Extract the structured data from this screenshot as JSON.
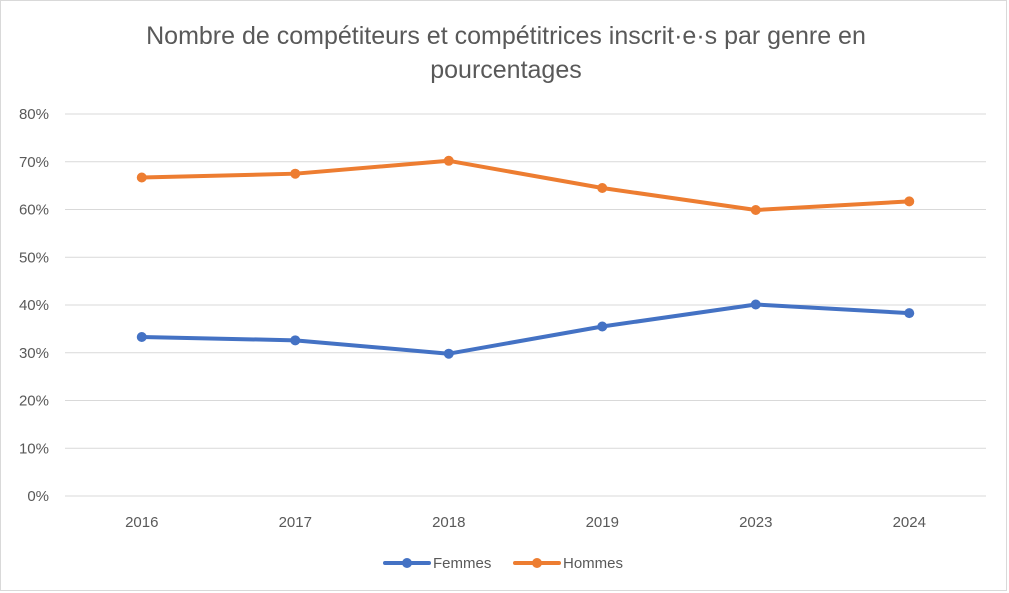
{
  "chart_data": {
    "type": "line",
    "title": "Nombre de compétiteurs et compétitrices inscrit·e·s par genre en pourcentages",
    "categories": [
      "2016",
      "2017",
      "2018",
      "2019",
      "2023",
      "2024"
    ],
    "y_ticks": [
      "0%",
      "10%",
      "20%",
      "30%",
      "40%",
      "50%",
      "60%",
      "70%",
      "80%"
    ],
    "ylim": [
      0,
      80
    ],
    "y_unit": "%",
    "grid": true,
    "legend_position": "bottom",
    "series": [
      {
        "name": "Femmes",
        "color": "#4472c4",
        "values": [
          33.3,
          32.6,
          29.8,
          35.5,
          40.1,
          38.3
        ]
      },
      {
        "name": "Hommes",
        "color": "#ed7d31",
        "values": [
          66.7,
          67.5,
          70.2,
          64.5,
          59.9,
          61.7
        ]
      }
    ],
    "gridline_color": "#d9d9d9",
    "text_color": "#595959"
  }
}
